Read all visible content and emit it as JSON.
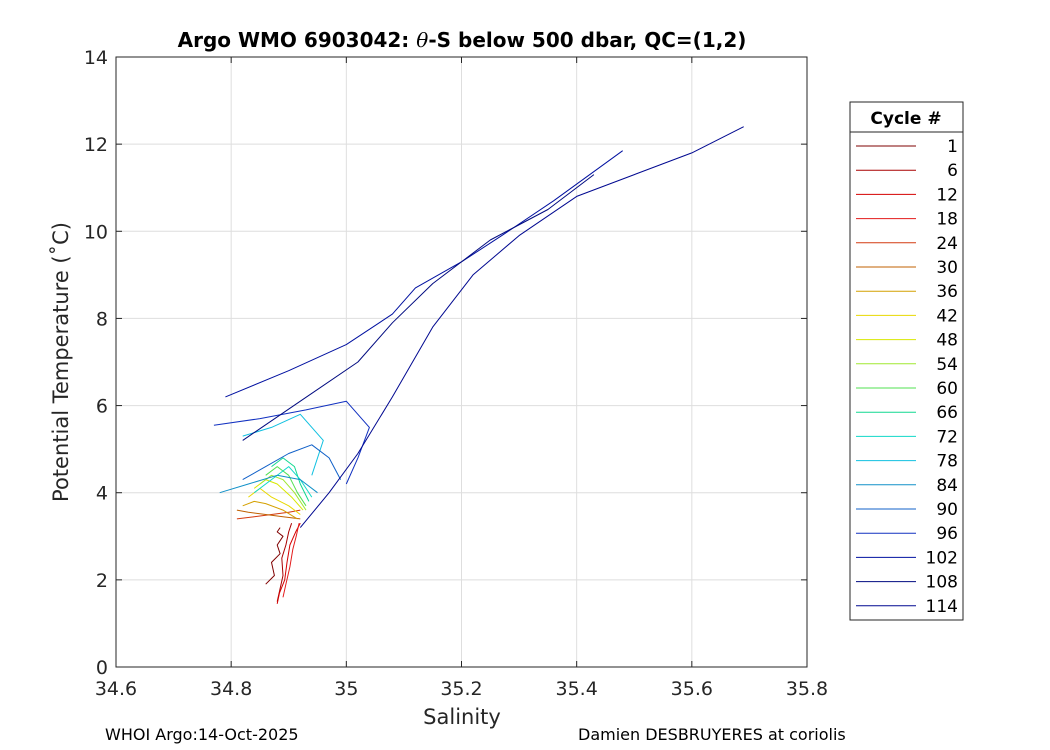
{
  "chart_data": {
    "type": "line",
    "title": "Argo WMO 6903042: θ-S below 500 dbar,  QC=(1,2)",
    "title_prefix": "Argo WMO 6903042: ",
    "title_symbol": "θ",
    "title_suffix": "-S below 500 dbar,  QC=(1,2)",
    "xlabel": "Salinity",
    "ylabel": "Potential Temperature (˚C)",
    "xlim": [
      34.6,
      35.8
    ],
    "ylim": [
      0,
      14
    ],
    "x_ticks": [
      34.6,
      34.8,
      35,
      35.2,
      35.4,
      35.6,
      35.8
    ],
    "x_tick_labels": [
      "34.6",
      "34.8",
      "35",
      "35.2",
      "35.4",
      "35.6",
      "35.8"
    ],
    "y_ticks": [
      0,
      2,
      4,
      6,
      8,
      10,
      12,
      14
    ],
    "y_tick_labels": [
      "0",
      "2",
      "4",
      "6",
      "8",
      "10",
      "12",
      "14"
    ],
    "grid": true,
    "legend": {
      "title": "Cycle #",
      "placement": "right",
      "entries": [
        {
          "label": "1",
          "color": "#7f0000"
        },
        {
          "label": "6",
          "color": "#a80000"
        },
        {
          "label": "12",
          "color": "#d40000"
        },
        {
          "label": "18",
          "color": "#e31a1a"
        },
        {
          "label": "24",
          "color": "#d43a10"
        },
        {
          "label": "30",
          "color": "#c06000"
        },
        {
          "label": "36",
          "color": "#d4a000"
        },
        {
          "label": "42",
          "color": "#e8d800"
        },
        {
          "label": "48",
          "color": "#d8e800"
        },
        {
          "label": "54",
          "color": "#a0e830"
        },
        {
          "label": "60",
          "color": "#50e050"
        },
        {
          "label": "66",
          "color": "#10d890"
        },
        {
          "label": "72",
          "color": "#10d8c8"
        },
        {
          "label": "78",
          "color": "#10c0e0"
        },
        {
          "label": "84",
          "color": "#1090c8"
        },
        {
          "label": "90",
          "color": "#1060c8"
        },
        {
          "label": "96",
          "color": "#1030c0"
        },
        {
          "label": "102",
          "color": "#0010a0"
        },
        {
          "label": "108",
          "color": "#000a80"
        },
        {
          "label": "114",
          "color": "#000890"
        }
      ]
    },
    "series": [
      {
        "name": "1",
        "color": "#7f0000",
        "x": [
          34.86,
          34.875,
          34.87,
          34.885,
          34.88,
          34.89,
          34.88,
          34.885
        ],
        "y": [
          1.9,
          2.1,
          2.4,
          2.6,
          2.8,
          3.0,
          3.1,
          3.2
        ]
      },
      {
        "name": "6",
        "color": "#a80000",
        "x": [
          34.88,
          34.885,
          34.89,
          34.888,
          34.895,
          34.9,
          34.905
        ],
        "y": [
          1.5,
          1.8,
          2.1,
          2.5,
          2.8,
          3.1,
          3.3
        ]
      },
      {
        "name": "12",
        "color": "#d40000",
        "x": [
          34.88,
          34.884,
          34.893,
          34.897,
          34.902,
          34.912,
          34.92
        ],
        "y": [
          1.45,
          1.7,
          2.0,
          2.4,
          2.8,
          3.1,
          3.3
        ]
      },
      {
        "name": "18",
        "color": "#e31a1a",
        "x": [
          34.89,
          34.895,
          34.902,
          34.907,
          34.913,
          34.918
        ],
        "y": [
          1.6,
          1.9,
          2.3,
          2.7,
          3.0,
          3.3
        ]
      },
      {
        "name": "24",
        "color": "#d43a10",
        "x": [
          34.81,
          34.84,
          34.87,
          34.9,
          34.92
        ],
        "y": [
          3.4,
          3.45,
          3.5,
          3.55,
          3.6
        ]
      },
      {
        "name": "30",
        "color": "#c06000",
        "x": [
          34.81,
          34.83,
          34.86,
          34.89,
          34.92
        ],
        "y": [
          3.6,
          3.55,
          3.5,
          3.45,
          3.4
        ]
      },
      {
        "name": "36",
        "color": "#d4a000",
        "x": [
          34.82,
          34.84,
          34.86,
          34.89,
          34.915
        ],
        "y": [
          3.7,
          3.8,
          3.75,
          3.6,
          3.4
        ]
      },
      {
        "name": "42",
        "color": "#e8d800",
        "x": [
          34.83,
          34.85,
          34.87,
          34.9,
          34.92
        ],
        "y": [
          3.9,
          4.1,
          3.9,
          3.7,
          3.5
        ]
      },
      {
        "name": "48",
        "color": "#d8e800",
        "x": [
          34.84,
          34.86,
          34.88,
          34.905,
          34.925
        ],
        "y": [
          4.1,
          4.3,
          4.2,
          3.9,
          3.6
        ]
      },
      {
        "name": "54",
        "color": "#a0e830",
        "x": [
          34.85,
          34.87,
          34.89,
          34.91,
          34.93
        ],
        "y": [
          4.2,
          4.4,
          4.3,
          4.0,
          3.6
        ]
      },
      {
        "name": "60",
        "color": "#50e050",
        "x": [
          34.86,
          34.88,
          34.9,
          34.915,
          34.93
        ],
        "y": [
          4.4,
          4.6,
          4.4,
          4.0,
          3.7
        ]
      },
      {
        "name": "66",
        "color": "#10d890",
        "x": [
          34.87,
          34.89,
          34.91,
          34.92,
          34.935
        ],
        "y": [
          4.6,
          4.8,
          4.6,
          4.2,
          3.8
        ]
      },
      {
        "name": "72",
        "color": "#10d8c8",
        "x": [
          34.84,
          34.87,
          34.9,
          34.92,
          34.94
        ],
        "y": [
          4.0,
          4.3,
          4.6,
          4.3,
          3.9
        ]
      },
      {
        "name": "78",
        "color": "#10c0e0",
        "x": [
          34.82,
          34.87,
          34.92,
          34.96,
          34.94
        ],
        "y": [
          5.3,
          5.5,
          5.8,
          5.2,
          4.4
        ]
      },
      {
        "name": "84",
        "color": "#1090c8",
        "x": [
          34.78,
          34.83,
          34.88,
          34.92,
          34.95
        ],
        "y": [
          4.0,
          4.2,
          4.4,
          4.3,
          4.0
        ]
      },
      {
        "name": "90",
        "color": "#1060c8",
        "x": [
          34.82,
          34.86,
          34.9,
          34.94,
          34.97,
          34.99
        ],
        "y": [
          4.3,
          4.6,
          4.9,
          5.1,
          4.8,
          4.3
        ]
      },
      {
        "name": "96",
        "color": "#1030c0",
        "x": [
          34.77,
          34.85,
          34.93,
          35.0,
          35.04,
          35.02,
          35.0
        ],
        "y": [
          5.55,
          5.7,
          5.9,
          6.1,
          5.5,
          4.8,
          4.2
        ]
      },
      {
        "name": "102",
        "color": "#0010a0",
        "x": [
          34.79,
          34.9,
          35.0,
          35.08,
          35.12,
          35.2,
          35.27,
          35.36,
          35.48
        ],
        "y": [
          6.2,
          6.8,
          7.4,
          8.1,
          8.7,
          9.3,
          9.9,
          10.7,
          11.85
        ]
      },
      {
        "name": "108",
        "color": "#000a80",
        "x": [
          34.82,
          34.92,
          35.02,
          35.08,
          35.15,
          35.25,
          35.35,
          35.43
        ],
        "y": [
          5.2,
          6.1,
          7.0,
          7.9,
          8.8,
          9.8,
          10.5,
          11.3
        ]
      },
      {
        "name": "114",
        "color": "#000890",
        "x": [
          34.92,
          34.97,
          35.02,
          35.08,
          35.15,
          35.22,
          35.3,
          35.4,
          35.5,
          35.6,
          35.69
        ],
        "y": [
          3.2,
          4.0,
          4.9,
          6.2,
          7.8,
          9.0,
          9.9,
          10.8,
          11.3,
          11.8,
          12.4
        ]
      }
    ]
  },
  "footer": {
    "left": "WHOI Argo:14-Oct-2025",
    "right": "Damien DESBRUYERES at coriolis"
  }
}
